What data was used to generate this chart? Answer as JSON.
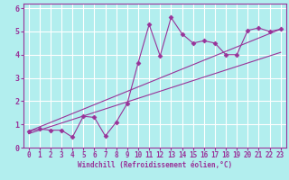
{
  "title": "",
  "xlabel": "Windchill (Refroidissement éolien,°C)",
  "ylabel": "",
  "bg_color": "#b2eeee",
  "grid_color": "#ffffff",
  "line_color": "#993399",
  "xlim": [
    -0.5,
    23.5
  ],
  "ylim": [
    0,
    6.2
  ],
  "xticks": [
    0,
    1,
    2,
    3,
    4,
    5,
    6,
    7,
    8,
    9,
    10,
    11,
    12,
    13,
    14,
    15,
    16,
    17,
    18,
    19,
    20,
    21,
    22,
    23
  ],
  "yticks": [
    0,
    1,
    2,
    3,
    4,
    5,
    6
  ],
  "data_x": [
    0,
    1,
    2,
    3,
    4,
    5,
    6,
    7,
    8,
    9,
    10,
    11,
    12,
    13,
    14,
    15,
    16,
    17,
    18,
    19,
    20,
    21,
    22,
    23
  ],
  "data_y": [
    0.7,
    0.8,
    0.75,
    0.75,
    0.45,
    1.35,
    1.3,
    0.5,
    1.1,
    1.9,
    3.65,
    5.3,
    3.95,
    5.6,
    4.9,
    4.5,
    4.6,
    4.5,
    4.0,
    4.0,
    5.05,
    5.15,
    5.0,
    5.1
  ],
  "line1_x": [
    0,
    23
  ],
  "line1_y": [
    0.6,
    4.1
  ],
  "line2_x": [
    0,
    23
  ],
  "line2_y": [
    0.7,
    5.1
  ],
  "marker": "D",
  "markersize": 2.5,
  "linewidth": 0.8,
  "tick_fontsize": 5.5,
  "xlabel_fontsize": 5.5
}
